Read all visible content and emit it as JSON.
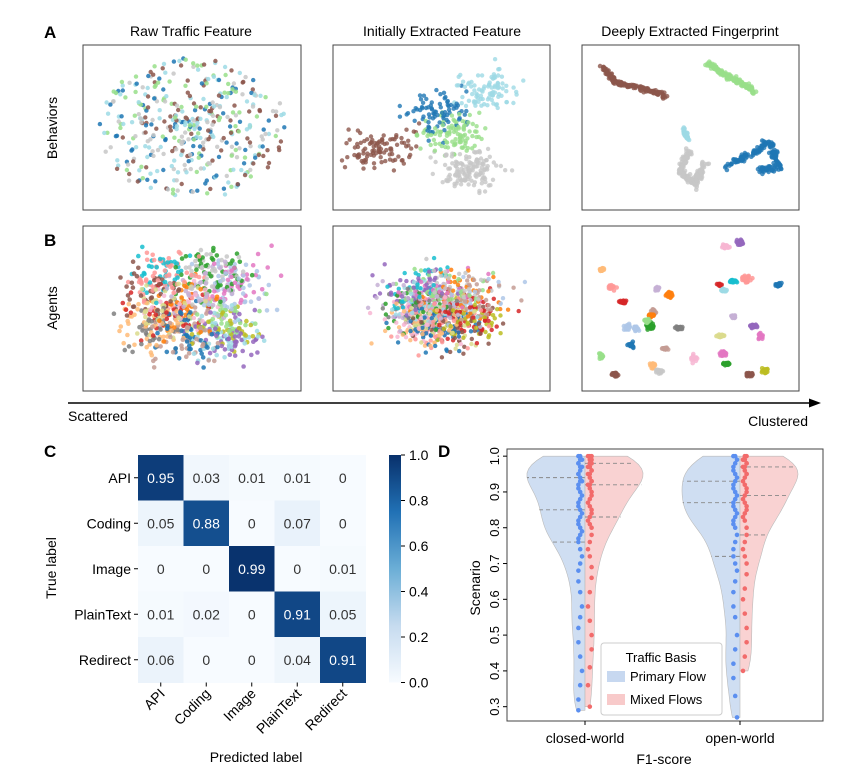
{
  "panels": {
    "A": {
      "letter": "A",
      "row_label": "Behaviors",
      "titles": [
        "Raw Traffic Feature",
        "Initially Extracted Feature",
        "Deeply Extracted Fingerprint"
      ]
    },
    "B": {
      "letter": "B",
      "row_label": "Agents"
    },
    "arrow": {
      "left_label": "Scattered",
      "right_label": "Clustered"
    }
  },
  "colors": {
    "behaviors": [
      "#8c564b",
      "#9edae5",
      "#1f77b4",
      "#98df8a",
      "#c7c7c7"
    ],
    "agents": [
      "#1f77b4",
      "#aec7e8",
      "#ff7f0e",
      "#ffbb78",
      "#2ca02c",
      "#98df8a",
      "#d62728",
      "#ff9896",
      "#9467bd",
      "#c5b0d5",
      "#8c564b",
      "#c49c94",
      "#e377c2",
      "#f7b6d2",
      "#7f7f7f",
      "#c7c7c7",
      "#bcbd22",
      "#dbdb8d",
      "#17becf",
      "#9edae5"
    ],
    "primary_flow": "#5b8ff0",
    "mixed_flows": "#f26b6b",
    "primary_fill": "#c7d8f0",
    "mixed_fill": "#f8caca",
    "heatmap_low": "#f7fbff",
    "heatmap_high": "#08306b"
  },
  "chart_data": [
    {
      "type": "scatter",
      "panel": "A",
      "title": "Raw Traffic Feature",
      "layout_mode": "scattered",
      "classes": 5
    },
    {
      "type": "scatter",
      "panel": "A",
      "title": "Initially Extracted Feature",
      "layout_mode": "partial",
      "classes": 5
    },
    {
      "type": "scatter",
      "panel": "A",
      "title": "Deeply Extracted Fingerprint",
      "layout_mode": "clustered",
      "classes": 5
    },
    {
      "type": "scatter",
      "panel": "B",
      "layout_mode": "scattered",
      "classes": 20
    },
    {
      "type": "scatter",
      "panel": "B",
      "layout_mode": "partial",
      "classes": 20
    },
    {
      "type": "scatter",
      "panel": "B",
      "layout_mode": "clustered",
      "classes": 20
    },
    {
      "type": "heatmap",
      "panel": "C",
      "letter": "C",
      "xlabel": "Predicted label",
      "ylabel": "True label",
      "categories": [
        "API",
        "Coding",
        "Image",
        "PlainText",
        "Redirect"
      ],
      "matrix": [
        [
          0.95,
          0.03,
          0.01,
          0.01,
          0
        ],
        [
          0.05,
          0.88,
          0,
          0.07,
          0
        ],
        [
          0,
          0,
          0.99,
          0,
          0.01
        ],
        [
          0.01,
          0.02,
          0,
          0.91,
          0.05
        ],
        [
          0.06,
          0,
          0,
          0.04,
          0.91
        ]
      ],
      "colorbar": {
        "range": [
          0,
          1.0
        ],
        "ticks": [
          "0.0",
          "0.2",
          "0.4",
          "0.6",
          "0.8",
          "1.0"
        ]
      }
    },
    {
      "type": "violin",
      "panel": "D",
      "letter": "D",
      "xlabel": "F1-score",
      "ylabel": "Scenario",
      "categories": [
        "closed-world",
        "open-world"
      ],
      "ylim": [
        0.26,
        1.02
      ],
      "yticks": [
        "0.3",
        "0.4",
        "0.5",
        "0.6",
        "0.7",
        "0.8",
        "0.9",
        "1.0"
      ],
      "legend": {
        "title": "Traffic Basis",
        "entries": [
          "Primary Flow",
          "Mixed Flows"
        ]
      },
      "series": [
        {
          "name": "Primary Flow",
          "groups": [
            {
              "category": "closed-world",
              "quartiles": [
                0.76,
                0.85,
                0.94
              ],
              "values": [
                1.0,
                1.0,
                0.99,
                0.99,
                0.98,
                0.98,
                0.97,
                0.97,
                0.96,
                0.95,
                0.95,
                0.94,
                0.93,
                0.93,
                0.92,
                0.91,
                0.9,
                0.89,
                0.88,
                0.87,
                0.86,
                0.85,
                0.84,
                0.83,
                0.82,
                0.81,
                0.8,
                0.79,
                0.78,
                0.77,
                0.76,
                0.74,
                0.72,
                0.7,
                0.68,
                0.65,
                0.62,
                0.58,
                0.55,
                0.52,
                0.48,
                0.44,
                0.4,
                0.36,
                0.32,
                0.29
              ]
            },
            {
              "category": "open-world",
              "quartiles": [
                0.72,
                0.87,
                0.93
              ],
              "values": [
                1.0,
                1.0,
                0.99,
                0.98,
                0.97,
                0.96,
                0.95,
                0.94,
                0.93,
                0.92,
                0.91,
                0.9,
                0.89,
                0.88,
                0.87,
                0.86,
                0.85,
                0.84,
                0.83,
                0.82,
                0.81,
                0.8,
                0.78,
                0.76,
                0.74,
                0.72,
                0.7,
                0.68,
                0.65,
                0.62,
                0.58,
                0.55,
                0.5,
                0.46,
                0.42,
                0.38,
                0.33,
                0.27
              ]
            }
          ]
        },
        {
          "name": "Mixed Flows",
          "groups": [
            {
              "category": "closed-world",
              "quartiles": [
                0.83,
                0.92,
                0.98
              ],
              "values": [
                1.0,
                1.0,
                1.0,
                0.99,
                0.99,
                0.98,
                0.98,
                0.97,
                0.97,
                0.96,
                0.96,
                0.95,
                0.95,
                0.94,
                0.93,
                0.93,
                0.92,
                0.92,
                0.91,
                0.9,
                0.89,
                0.88,
                0.87,
                0.86,
                0.85,
                0.84,
                0.83,
                0.82,
                0.81,
                0.8,
                0.78,
                0.76,
                0.74,
                0.72,
                0.69,
                0.66,
                0.62,
                0.58,
                0.54,
                0.5,
                0.46,
                0.41,
                0.36,
                0.3
              ]
            },
            {
              "category": "open-world",
              "quartiles": [
                0.78,
                0.89,
                0.97
              ],
              "values": [
                1.0,
                1.0,
                0.99,
                0.99,
                0.98,
                0.98,
                0.97,
                0.97,
                0.96,
                0.95,
                0.95,
                0.94,
                0.93,
                0.92,
                0.91,
                0.9,
                0.89,
                0.88,
                0.87,
                0.86,
                0.85,
                0.84,
                0.83,
                0.82,
                0.8,
                0.78,
                0.76,
                0.74,
                0.72,
                0.7,
                0.67,
                0.63,
                0.6,
                0.56,
                0.52,
                0.48,
                0.44,
                0.4
              ]
            }
          ]
        }
      ]
    }
  ]
}
